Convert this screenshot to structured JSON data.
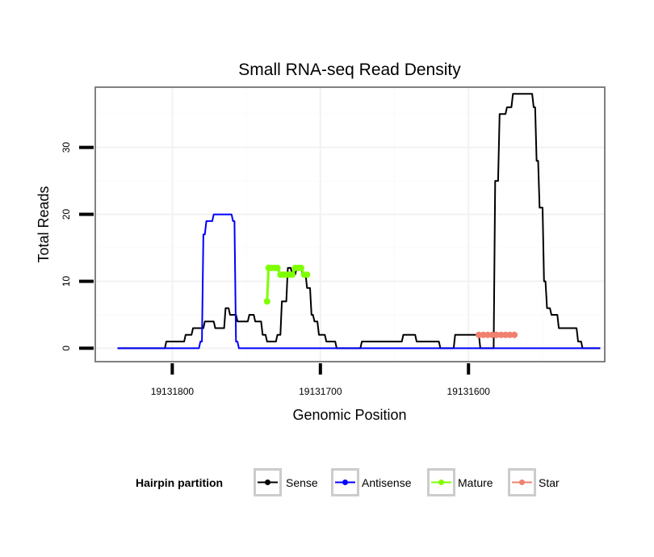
{
  "chart_data": {
    "type": "line",
    "title": "Small RNA-seq Read Density",
    "xlabel": "Genomic Position",
    "ylabel": "Total Reads",
    "x_reversed": true,
    "xlim": [
      19131852,
      19131508
    ],
    "ylim": [
      -2,
      39
    ],
    "x_ticks": [
      19131800,
      19131700,
      19131600
    ],
    "x_tick_labels": [
      "19131800",
      "19131700",
      "19131600"
    ],
    "y_ticks": [
      0,
      10,
      20,
      30
    ],
    "y_tick_labels": [
      "0",
      "10",
      "20",
      "30"
    ],
    "grid": true,
    "legend": {
      "title": "Hairpin partition",
      "position": "bottom",
      "entries": [
        "Sense",
        "Antisense",
        "Mature",
        "Star"
      ]
    },
    "colors": {
      "Sense": "#000000",
      "Antisense": "#0000ff",
      "Mature": "#7fff00",
      "Star": "#f08070",
      "panel_border": "#808080",
      "grid_major": "#f2f2f2",
      "grid_minor": "#fafafa"
    },
    "series": [
      {
        "name": "Sense",
        "style": "line",
        "x": [
          19131837,
          19131805,
          19131804,
          19131796,
          19131795,
          19131792,
          19131791,
          19131787,
          19131786,
          19131779,
          19131778,
          19131772,
          19131771,
          19131765,
          19131764,
          19131762,
          19131761,
          19131757,
          19131756,
          19131752,
          19131751,
          19131749,
          19131748,
          19131745,
          19131744,
          19131740,
          19131739,
          19131737,
          19131736,
          19131730,
          19131729,
          19131727,
          19131726,
          19131723,
          19131722,
          19131720,
          19131719,
          19131717,
          19131716,
          19131713,
          19131712,
          19131710,
          19131709,
          19131707,
          19131706,
          19131705,
          19131704,
          19131702,
          19131701,
          19131697,
          19131696,
          19131690,
          19131689,
          19131673,
          19131672,
          19131645,
          19131644,
          19131636,
          19131635,
          19131620,
          19131619,
          19131610,
          19131609,
          19131593,
          19131592,
          19131583,
          19131582,
          19131580,
          19131579,
          19131575,
          19131574,
          19131571,
          19131570,
          19131565,
          19131564,
          19131557,
          19131556,
          19131555,
          19131554,
          19131553,
          19131552,
          19131550,
          19131549,
          19131548,
          19131547,
          19131545,
          19131544,
          19131540,
          19131539,
          19131536,
          19131535,
          19131527,
          19131526,
          19131524,
          19131523,
          19131511
        ],
        "values": [
          0,
          0,
          1,
          1,
          1,
          1,
          2,
          2,
          3,
          3,
          4,
          4,
          3,
          3,
          6,
          6,
          5,
          5,
          4,
          4,
          4,
          4,
          5,
          5,
          4,
          4,
          2,
          2,
          1,
          1,
          2,
          2,
          7,
          7,
          12,
          12,
          11,
          11,
          12,
          12,
          11,
          11,
          9,
          9,
          5,
          5,
          4,
          4,
          2,
          2,
          1,
          1,
          0,
          0,
          1,
          1,
          2,
          2,
          1,
          1,
          0,
          0,
          2,
          2,
          0,
          0,
          25,
          25,
          35,
          35,
          36,
          36,
          38,
          38,
          38,
          38,
          36,
          36,
          28,
          28,
          21,
          21,
          10,
          10,
          6,
          6,
          5,
          5,
          3,
          3,
          3,
          3,
          1,
          1,
          0,
          0
        ]
      },
      {
        "name": "Antisense",
        "style": "line",
        "x": [
          19131837,
          19131782,
          19131781,
          19131780,
          19131779,
          19131778,
          19131777,
          19131776,
          19131775,
          19131773,
          19131772,
          19131769,
          19131768,
          19131760,
          19131759,
          19131758,
          19131757,
          19131756,
          19131755,
          19131511
        ],
        "values": [
          0,
          0,
          1,
          1,
          17,
          17,
          19,
          19,
          19,
          19,
          20,
          20,
          20,
          20,
          19,
          19,
          1,
          1,
          0,
          0
        ]
      },
      {
        "name": "Mature",
        "style": "points",
        "x": [
          19131736,
          19131735,
          19131733,
          19131731,
          19131729,
          19131727,
          19131725,
          19131723,
          19131721,
          19131719,
          19131717,
          19131715,
          19131713,
          19131711,
          19131709
        ],
        "values": [
          7,
          12,
          12,
          12,
          12,
          11,
          11,
          11,
          11,
          11,
          12,
          12,
          12,
          11,
          11
        ]
      },
      {
        "name": "Star",
        "style": "points",
        "x": [
          19131593,
          19131590,
          19131587,
          19131584,
          19131581,
          19131578,
          19131575,
          19131572,
          19131569
        ],
        "values": [
          2,
          2,
          2,
          2,
          2,
          2,
          2,
          2,
          2
        ]
      }
    ]
  }
}
